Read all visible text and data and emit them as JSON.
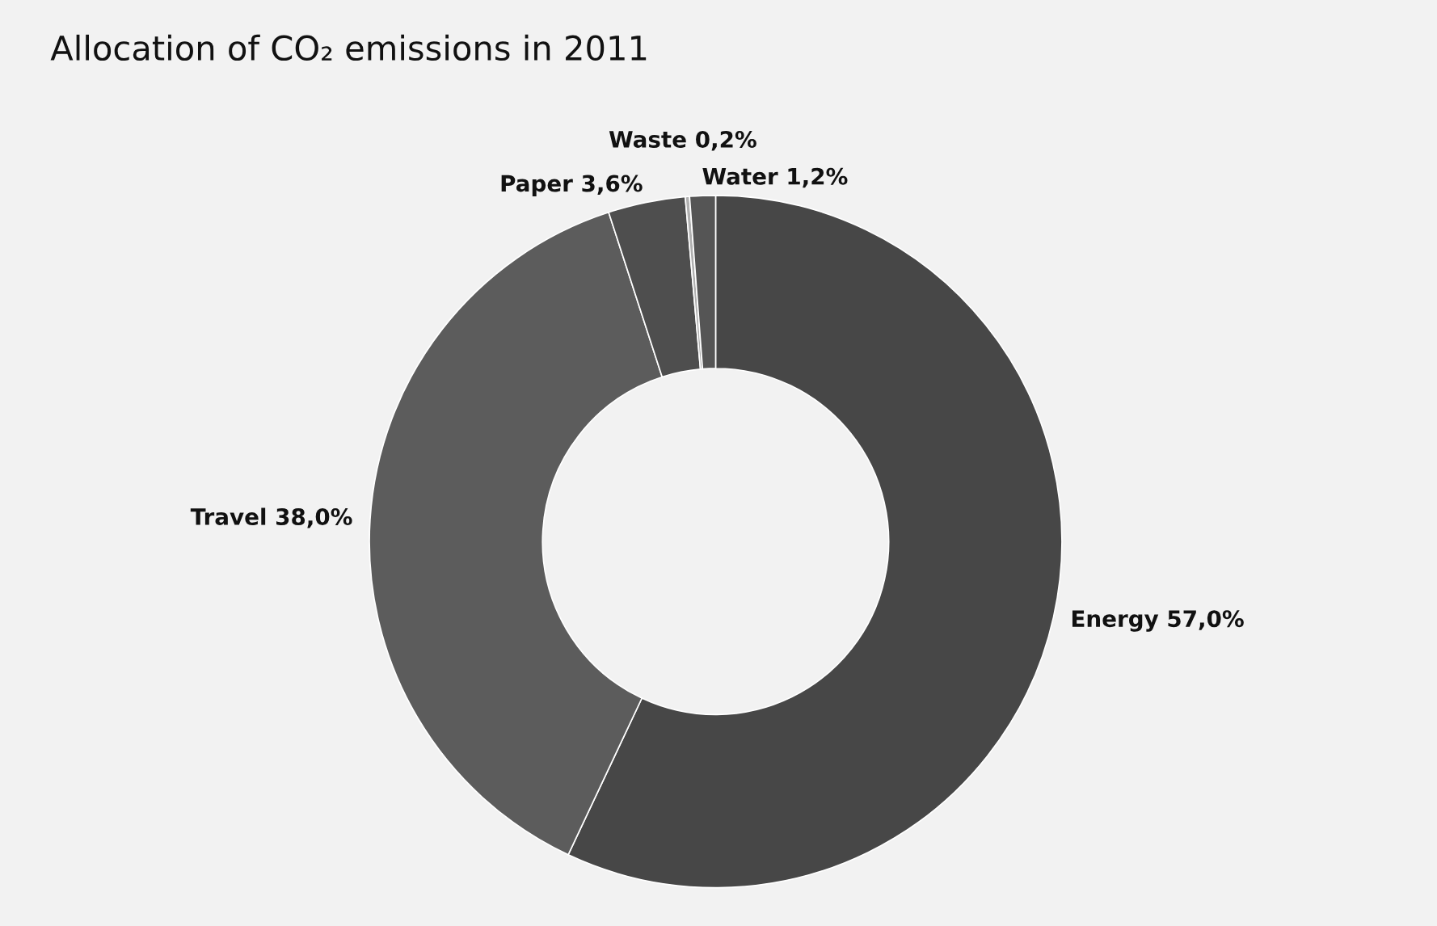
{
  "chart_data": {
    "type": "donut",
    "title": "Allocation of CO₂ emissions in 2011",
    "categories": [
      "Energy",
      "Travel",
      "Paper",
      "Waste",
      "Water"
    ],
    "values": [
      57.0,
      38.0,
      3.6,
      0.2,
      1.2
    ],
    "value_labels": [
      "57,0%",
      "38,0%",
      "3,6%",
      "0,2%",
      "1,2%"
    ],
    "colors": [
      "#474747",
      "#5c5c5c",
      "#4e4e4e",
      "#b0b0b0",
      "#555555"
    ],
    "legend": false
  }
}
